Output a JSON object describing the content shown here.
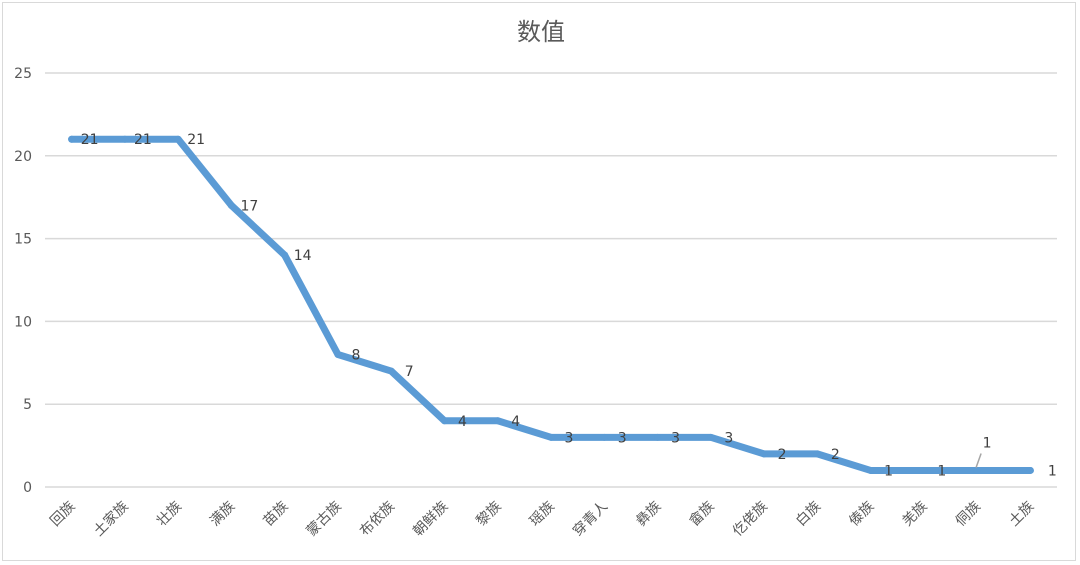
{
  "chart_data": {
    "type": "line",
    "title": "数值",
    "xlabel": "",
    "ylabel": "",
    "ylim": [
      0,
      25
    ],
    "yticks": [
      0,
      5,
      10,
      15,
      20,
      25
    ],
    "grid": true,
    "legend": "none",
    "categories": [
      "回族",
      "土家族",
      "壮族",
      "满族",
      "苗族",
      "蒙古族",
      "布依族",
      "朝鲜族",
      "黎族",
      "瑶族",
      "穿青人",
      "彝族",
      "畲族",
      "仡佬族",
      "白族",
      "傣族",
      "羌族",
      "侗族",
      "土族"
    ],
    "series": [
      {
        "values": [
          21,
          21,
          21,
          17,
          14,
          8,
          7,
          4,
          4,
          3,
          3,
          3,
          3,
          2,
          2,
          1,
          1,
          1,
          1
        ],
        "color": "#5b9bd5"
      }
    ],
    "data_labels": true
  }
}
